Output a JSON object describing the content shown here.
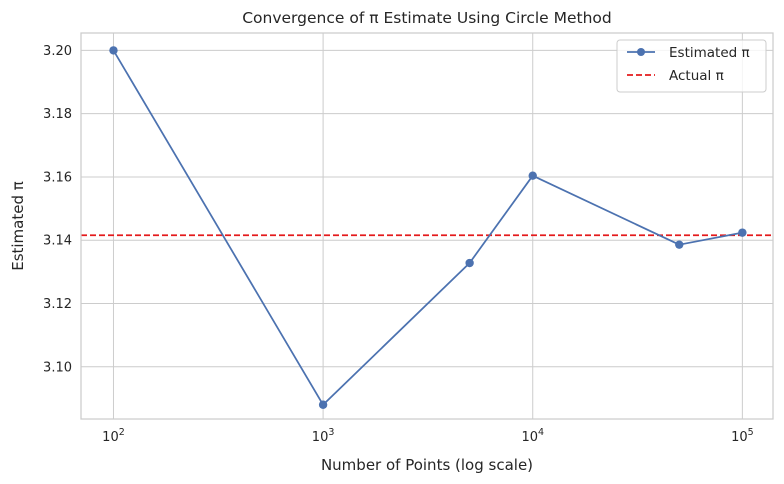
{
  "chart_data": {
    "type": "line",
    "title": "Convergence of π Estimate Using Circle Method",
    "xlabel": "Number of Points (log scale)",
    "ylabel": "Estimated π",
    "x_scale": "log",
    "x_ticks": [
      {
        "value": 100,
        "base": "10",
        "exp": "2"
      },
      {
        "value": 1000,
        "base": "10",
        "exp": "3"
      },
      {
        "value": 10000,
        "base": "10",
        "exp": "4"
      },
      {
        "value": 100000,
        "base": "10",
        "exp": "5"
      }
    ],
    "y_ticks": [
      "3.10",
      "3.12",
      "3.14",
      "3.16",
      "3.18",
      "3.20"
    ],
    "xlim": [
      70,
      140000
    ],
    "ylim": [
      3.0835,
      3.2055
    ],
    "grid": true,
    "legend_position": "top-right",
    "series": [
      {
        "name": "Estimated π",
        "color": "#4c72b0",
        "marker": "circle",
        "x": [
          100,
          1000,
          5000,
          10000,
          50000,
          100000
        ],
        "y": [
          3.2,
          3.088,
          3.1328,
          3.1604,
          3.1386,
          3.1424
        ]
      }
    ],
    "reference_lines": [
      {
        "name": "Actual π",
        "axis": "y",
        "value": 3.14159,
        "color": "#e41a1c",
        "style": "dashed"
      }
    ]
  }
}
